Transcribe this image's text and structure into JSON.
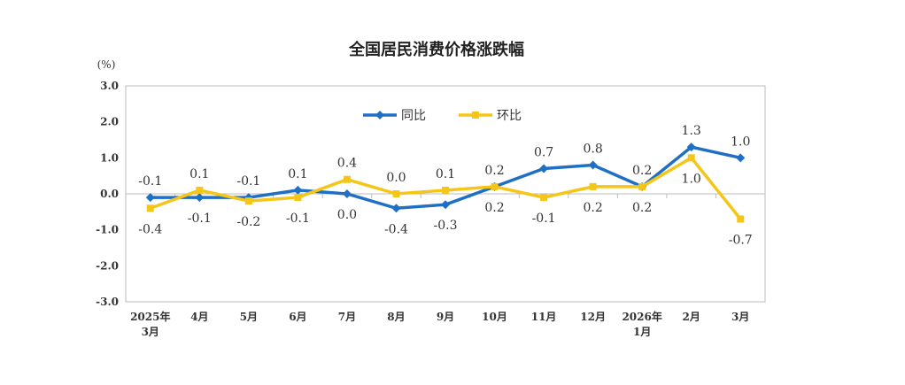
{
  "chart_data": {
    "type": "line",
    "title": "全国居民消费价格涨跌幅",
    "ylabel": "(%)",
    "ylim": [
      -3.0,
      3.0
    ],
    "yticks": [
      "3.0",
      "2.0",
      "1.0",
      "0.0",
      "-1.0",
      "-2.0",
      "-3.0"
    ],
    "ytick_values": [
      3,
      2,
      1,
      0,
      -1,
      -2,
      -3
    ],
    "categories": [
      [
        "2025年",
        "3月"
      ],
      [
        "4月"
      ],
      [
        "5月"
      ],
      [
        "6月"
      ],
      [
        "7月"
      ],
      [
        "8月"
      ],
      [
        "9月"
      ],
      [
        "10月"
      ],
      [
        "11月"
      ],
      [
        "12月"
      ],
      [
        "2026年",
        "1月"
      ],
      [
        "2月"
      ],
      [
        "3月"
      ]
    ],
    "legend_position": "top-center",
    "series": [
      {
        "name": "同比",
        "color": "#1f6fc5",
        "marker": "diamond",
        "values": [
          -0.1,
          -0.1,
          -0.1,
          0.1,
          0.0,
          -0.4,
          -0.3,
          0.2,
          0.7,
          0.8,
          0.2,
          1.3,
          1.0
        ]
      },
      {
        "name": "环比",
        "color": "#f5c518",
        "marker": "square",
        "values": [
          -0.4,
          0.1,
          -0.2,
          -0.1,
          0.4,
          0.0,
          0.1,
          0.2,
          -0.1,
          0.2,
          0.2,
          1.0,
          -0.7
        ]
      }
    ]
  }
}
